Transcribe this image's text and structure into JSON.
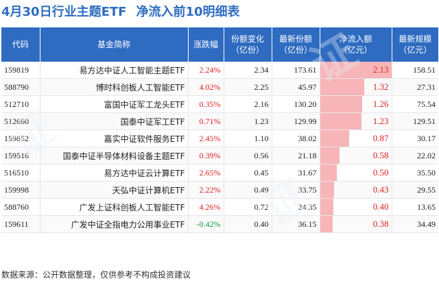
{
  "title": {
    "main": "4月30日行业主题ETF",
    "sub": "净流入前10明细表"
  },
  "columns": [
    "代码",
    "基金简称",
    "涨跌幅",
    "份额变化\n（亿份）",
    "最新份额\n（亿份）",
    "净流入额\n（亿元）",
    "最新规模\n（亿元）"
  ],
  "rows": [
    {
      "code": "159819",
      "name": "易方达中证人工智能主题ETF",
      "change": "2.24%",
      "share_change": "2.34",
      "latest_share": "173.61",
      "net_inflow": "2.13",
      "inflow_value": 2.13,
      "scale": "158.51",
      "change_color": "#e02020"
    },
    {
      "code": "588790",
      "name": "博时科创板人工智能ETF",
      "change": "4.02%",
      "share_change": "2.25",
      "latest_share": "45.97",
      "net_inflow": "1.32",
      "inflow_value": 1.32,
      "scale": "27.31",
      "change_color": "#e02020"
    },
    {
      "code": "512710",
      "name": "富国中证军工龙头ETF",
      "change": "0.35%",
      "share_change": "2.16",
      "latest_share": "130.20",
      "net_inflow": "1.26",
      "inflow_value": 1.26,
      "scale": "75.54",
      "change_color": "#e02020"
    },
    {
      "code": "512660",
      "name": "国泰中证军工ETF",
      "change": "0.71%",
      "share_change": "1.23",
      "latest_share": "129.99",
      "net_inflow": "1.23",
      "inflow_value": 1.23,
      "scale": "129.51",
      "change_color": "#e02020"
    },
    {
      "code": "159852",
      "name": "嘉实中证软件服务ETF",
      "change": "2.45%",
      "share_change": "1.10",
      "latest_share": "38.02",
      "net_inflow": "0.87",
      "inflow_value": 0.87,
      "scale": "30.17",
      "change_color": "#e02020"
    },
    {
      "code": "159516",
      "name": "国泰中证半导体材料设备主题ETF",
      "change": "0.39%",
      "share_change": "0.56",
      "latest_share": "21.18",
      "net_inflow": "0.58",
      "inflow_value": 0.58,
      "scale": "22.02",
      "change_color": "#e02020"
    },
    {
      "code": "516510",
      "name": "易方达中证云计算ETF",
      "change": "2.65%",
      "share_change": "0.45",
      "latest_share": "31.67",
      "net_inflow": "0.50",
      "inflow_value": 0.5,
      "scale": "35.50",
      "change_color": "#e02020"
    },
    {
      "code": "159998",
      "name": "天弘中证计算机ETF",
      "change": "2.22%",
      "share_change": "0.49",
      "latest_share": "33.75",
      "net_inflow": "0.43",
      "inflow_value": 0.43,
      "scale": "29.55",
      "change_color": "#e02020"
    },
    {
      "code": "588760",
      "name": "广发上证科创板人工智能ETF",
      "change": "4.26%",
      "share_change": "0.72",
      "latest_share": "24.35",
      "net_inflow": "0.40",
      "inflow_value": 0.4,
      "scale": "13.65",
      "change_color": "#e02020"
    },
    {
      "code": "159611",
      "name": "广发中证全指电力公用事业ETF",
      "change": "-0.42%",
      "share_change": "0.40",
      "latest_share": "36.15",
      "net_inflow": "0.38",
      "inflow_value": 0.38,
      "scale": "34.49",
      "change_color": "#139b3a"
    }
  ],
  "inflow_max": 2.13,
  "footer": "数据来源：公开数据整理，仅供参考不构成投资建议",
  "colors": {
    "header_bg": "#2e6bc1",
    "title": "#2d6cc0",
    "bar_fill": "#f7b5b8",
    "positive": "#e02020",
    "negative": "#139b3a"
  }
}
